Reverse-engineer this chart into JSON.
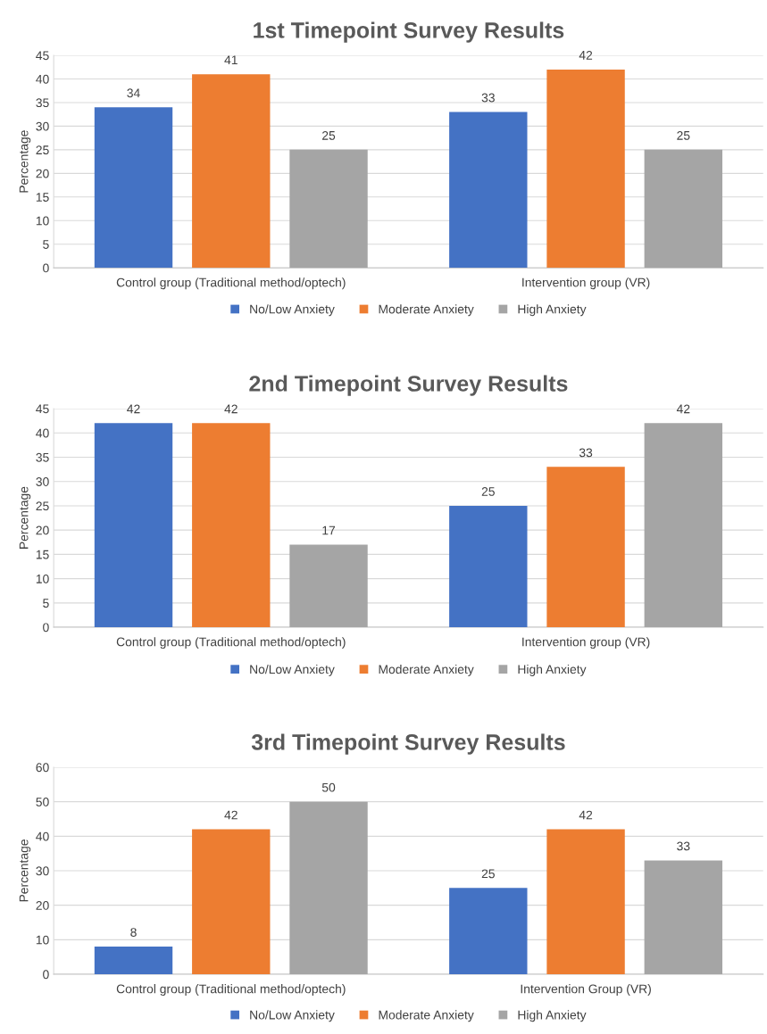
{
  "chart_data": [
    {
      "type": "bar",
      "title": "1st Timepoint Survey Results",
      "ylabel": "Percentage",
      "categories": [
        "Control group (Traditional method/optech)",
        "Intervention group (VR)"
      ],
      "series": [
        {
          "name": "No/Low Anxiety",
          "color": "#4472c4",
          "values": [
            34,
            33
          ]
        },
        {
          "name": "Moderate Anxiety",
          "color": "#ed7d31",
          "values": [
            41,
            42
          ]
        },
        {
          "name": "High Anxiety",
          "color": "#a5a5a5",
          "values": [
            25,
            25
          ]
        }
      ],
      "ylim": [
        0,
        45
      ],
      "yticks": [
        0,
        5,
        10,
        15,
        20,
        25,
        30,
        35,
        40,
        45
      ],
      "grid": "y",
      "legend": "bottom",
      "data_labels": true
    },
    {
      "type": "bar",
      "title": "2nd Timepoint Survey Results",
      "ylabel": "Percentage",
      "categories": [
        "Control group (Traditional method/optech)",
        "Intervention group (VR)"
      ],
      "series": [
        {
          "name": "No/Low Anxiety",
          "color": "#4472c4",
          "values": [
            42,
            25
          ]
        },
        {
          "name": "Moderate Anxiety",
          "color": "#ed7d31",
          "values": [
            42,
            33
          ]
        },
        {
          "name": "High Anxiety",
          "color": "#a5a5a5",
          "values": [
            17,
            42
          ]
        }
      ],
      "ylim": [
        0,
        45
      ],
      "yticks": [
        0,
        5,
        10,
        15,
        20,
        25,
        30,
        35,
        40,
        45
      ],
      "grid": "y",
      "legend": "bottom",
      "data_labels": true
    },
    {
      "type": "bar",
      "title": "3rd Timepoint Survey Results",
      "ylabel": "Percentage",
      "categories": [
        "Control group (Traditional method/optech)",
        "Intervention Group (VR)"
      ],
      "series": [
        {
          "name": "No/Low Anxiety",
          "color": "#4472c4",
          "values": [
            8,
            25
          ]
        },
        {
          "name": "Moderate Anxiety",
          "color": "#ed7d31",
          "values": [
            42,
            42
          ]
        },
        {
          "name": "High Anxiety",
          "color": "#a5a5a5",
          "values": [
            50,
            33
          ]
        }
      ],
      "ylim": [
        0,
        60
      ],
      "yticks": [
        0,
        10,
        20,
        30,
        40,
        50,
        60
      ],
      "grid": "y",
      "legend": "bottom",
      "data_labels": true
    }
  ]
}
